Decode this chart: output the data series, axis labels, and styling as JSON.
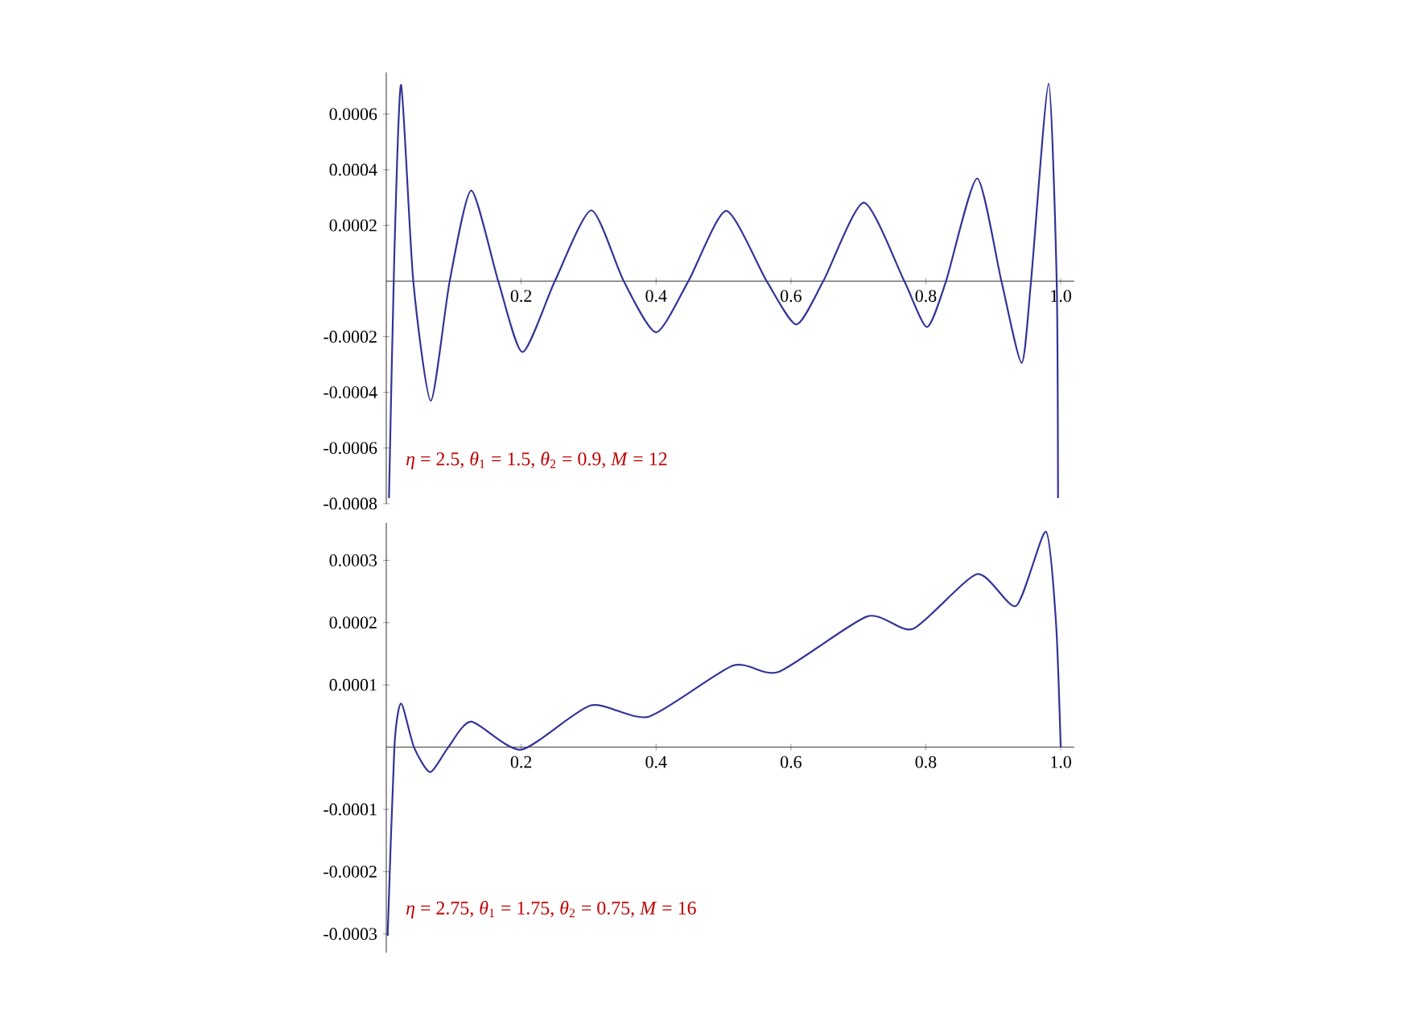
{
  "chart_data": [
    {
      "type": "line",
      "color": "#333399",
      "x": [
        0.004,
        0.012,
        0.022,
        0.04,
        0.066,
        0.094,
        0.126,
        0.166,
        0.202,
        0.25,
        0.304,
        0.352,
        0.4,
        0.448,
        0.504,
        0.564,
        0.608,
        0.648,
        0.708,
        0.768,
        0.8016,
        0.83,
        0.876,
        0.912,
        0.942,
        0.956,
        0.982,
        0.994,
        0.996
      ],
      "values": [
        -0.00078,
        0.0001,
        0.000705,
        0,
        -0.00043,
        0,
        0.000325,
        0,
        -0.000255,
        0,
        0.000254,
        0,
        -0.000184,
        0,
        0.000252,
        0,
        -0.000156,
        0,
        0.000282,
        0,
        -0.000165,
        0,
        0.000369,
        0,
        -0.000294,
        0,
        0.00071,
        0,
        -0.00078
      ],
      "xlim": [
        0,
        1.02
      ],
      "ylim": [
        -0.0008,
        0.00075
      ],
      "xticks": [
        0.2,
        0.4,
        0.6,
        0.8,
        {
          "value": 1.0,
          "label": "1.0"
        }
      ],
      "yticks": [
        -0.0008,
        -0.0006,
        -0.0004,
        -0.0002,
        0.0002,
        0.0004,
        0.0006
      ],
      "annotations": [
        "*η* = 2.5,  *θ*$_{1}$ = 1.5,  *θ*$_{2}$ = 0.9,  *M* = 12"
      ]
    },
    {
      "type": "line",
      "color": "#333399",
      "x": [
        0.002,
        0.012,
        0.022,
        0.041,
        0.065,
        0.092,
        0.126,
        0.2,
        0.303,
        0.389,
        0.514,
        0.582,
        0.713,
        0.781,
        0.876,
        0.934,
        0.978,
        0.993,
        1.0
      ],
      "values": [
        -0.000303,
        0,
        7e-05,
        0,
        -4e-05,
        0,
        4.1e-05,
        -4e-06,
        6.7e-05,
        4.9e-05,
        0.000131,
        0.000121,
        0.00021,
        0.00019,
        0.000278,
        0.000227,
        0.000346,
        0.0002,
        0
      ],
      "xlim": [
        0,
        1.02
      ],
      "ylim": [
        -0.00033,
        0.00036
      ],
      "xticks": [
        0.2,
        0.4,
        0.6,
        0.8,
        {
          "value": 1.0,
          "label": "1.0"
        }
      ],
      "yticks": [
        -0.0003,
        -0.0002,
        -0.0001,
        0.0001,
        0.0002,
        0.0003
      ],
      "annotations": [
        "*η* = 2.75,  *θ*$_{1}$ = 1.75,  *θ*$_{2}$ = 0.75,  *M* = 16"
      ]
    }
  ]
}
